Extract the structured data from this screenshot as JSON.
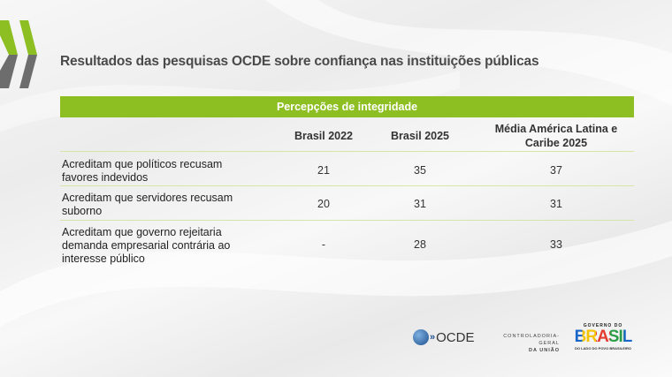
{
  "title": "Resultados das pesquisas OCDE sobre confiança nas instituições públicas",
  "table": {
    "group_header": "Percepções de integridade",
    "columns": [
      "Brasil 2022",
      "Brasil 2025",
      "Média América Latina e Caribe 2025"
    ],
    "rows": [
      {
        "label": "Acreditam que políticos recusam favores indevidos",
        "values": [
          "21",
          "35",
          "37"
        ]
      },
      {
        "label": "Acreditam que servidores recusam suborno",
        "values": [
          "20",
          "31",
          "31"
        ]
      },
      {
        "label": "Acreditam que governo rejeitaria demanda empresarial contrária ao interesse público",
        "values": [
          "-",
          "28",
          "33"
        ]
      }
    ]
  },
  "logos": {
    "ocde": "OCDE",
    "cgu_line1": "CONTROLADORIA-GERAL",
    "cgu_line2": "DA UNIÃO",
    "gov_top": "GOVERNO DO",
    "gov_main": "BRASIL",
    "gov_bottom": "DO LADO DO POVO BRASILEIRO"
  },
  "colors": {
    "accent": "#8dbe22",
    "chevron_gray": "#6d6d6d"
  }
}
